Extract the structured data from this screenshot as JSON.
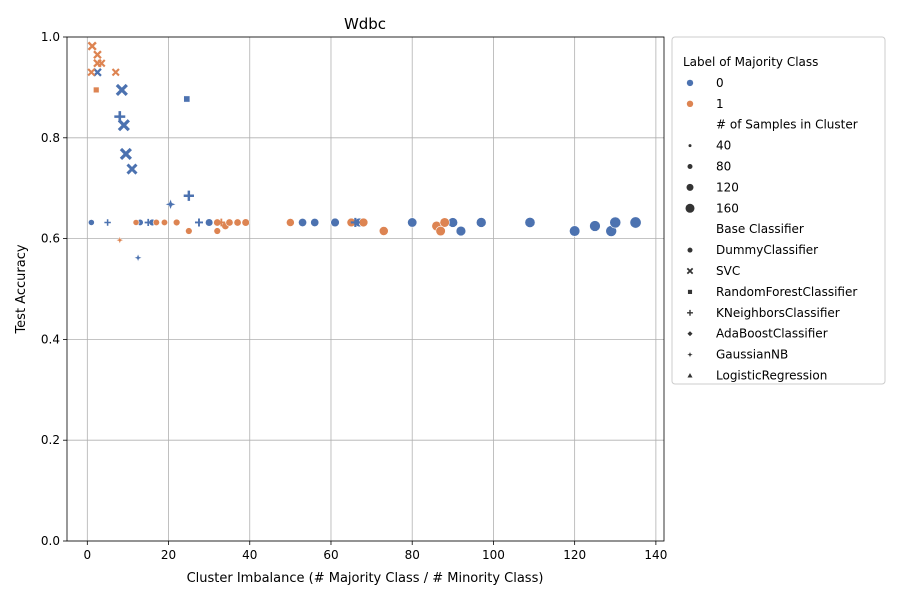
{
  "chart_data": {
    "type": "scatter",
    "title": "Wdbc",
    "xlabel": "Cluster Imbalance (# Majority Class / # Minority Class)",
    "ylabel": "Test Accuracy",
    "xlim": [
      -5,
      142
    ],
    "ylim": [
      0.0,
      1.0
    ],
    "xticks": [
      0,
      20,
      40,
      60,
      80,
      100,
      120,
      140
    ],
    "yticks": [
      0.0,
      0.2,
      0.4,
      0.6,
      0.8,
      1.0
    ],
    "xtick_labels": [
      "0",
      "20",
      "40",
      "60",
      "80",
      "100",
      "120",
      "140"
    ],
    "ytick_labels": [
      "0.0",
      "0.2",
      "0.4",
      "0.6",
      "0.8",
      "1.0"
    ],
    "grid": true,
    "legend_placement": "outside-right",
    "colors": {
      "0": "#4c72b0",
      "1": "#dd8452"
    },
    "legend": {
      "hue_title": "Label of Majority Class",
      "hue_entries": [
        "0",
        "1"
      ],
      "size_title": "# of Samples in Cluster",
      "size_entries": [
        "40",
        "80",
        "120",
        "160"
      ],
      "style_title": "Base Classifier",
      "style_entries": [
        "DummyClassifier",
        "SVC",
        "RandomForestClassifier",
        "KNeighborsClassifier",
        "AdaBoostClassifier",
        "GaussianNB",
        "LogisticRegression"
      ]
    },
    "points": [
      {
        "x": 1,
        "y": 0.632,
        "label": "0",
        "clf": "DummyClassifier",
        "n": 20
      },
      {
        "x": 13,
        "y": 0.632,
        "label": "0",
        "clf": "DummyClassifier",
        "n": 25
      },
      {
        "x": 16,
        "y": 0.632,
        "label": "0",
        "clf": "DummyClassifier",
        "n": 30
      },
      {
        "x": 30,
        "y": 0.632,
        "label": "0",
        "clf": "DummyClassifier",
        "n": 45
      },
      {
        "x": 53,
        "y": 0.632,
        "label": "0",
        "clf": "DummyClassifier",
        "n": 60
      },
      {
        "x": 56,
        "y": 0.632,
        "label": "0",
        "clf": "DummyClassifier",
        "n": 60
      },
      {
        "x": 61,
        "y": 0.632,
        "label": "0",
        "clf": "DummyClassifier",
        "n": 70
      },
      {
        "x": 67,
        "y": 0.632,
        "label": "0",
        "clf": "DummyClassifier",
        "n": 75
      },
      {
        "x": 80,
        "y": 0.632,
        "label": "0",
        "clf": "DummyClassifier",
        "n": 90
      },
      {
        "x": 90,
        "y": 0.632,
        "label": "0",
        "clf": "DummyClassifier",
        "n": 100
      },
      {
        "x": 92,
        "y": 0.615,
        "label": "0",
        "clf": "DummyClassifier",
        "n": 100
      },
      {
        "x": 97,
        "y": 0.632,
        "label": "0",
        "clf": "DummyClassifier",
        "n": 105
      },
      {
        "x": 109,
        "y": 0.632,
        "label": "0",
        "clf": "DummyClassifier",
        "n": 115
      },
      {
        "x": 120,
        "y": 0.615,
        "label": "0",
        "clf": "DummyClassifier",
        "n": 125
      },
      {
        "x": 125,
        "y": 0.625,
        "label": "0",
        "clf": "DummyClassifier",
        "n": 135
      },
      {
        "x": 129,
        "y": 0.615,
        "label": "0",
        "clf": "DummyClassifier",
        "n": 140
      },
      {
        "x": 130,
        "y": 0.632,
        "label": "0",
        "clf": "DummyClassifier",
        "n": 145
      },
      {
        "x": 135,
        "y": 0.632,
        "label": "0",
        "clf": "DummyClassifier",
        "n": 150
      },
      {
        "x": 12,
        "y": 0.632,
        "label": "1",
        "clf": "DummyClassifier",
        "n": 20
      },
      {
        "x": 17,
        "y": 0.632,
        "label": "1",
        "clf": "DummyClassifier",
        "n": 25
      },
      {
        "x": 19,
        "y": 0.632,
        "label": "1",
        "clf": "DummyClassifier",
        "n": 25
      },
      {
        "x": 22,
        "y": 0.632,
        "label": "1",
        "clf": "DummyClassifier",
        "n": 30
      },
      {
        "x": 25,
        "y": 0.615,
        "label": "1",
        "clf": "DummyClassifier",
        "n": 30
      },
      {
        "x": 32,
        "y": 0.632,
        "label": "1",
        "clf": "DummyClassifier",
        "n": 40
      },
      {
        "x": 32,
        "y": 0.615,
        "label": "1",
        "clf": "DummyClassifier",
        "n": 30
      },
      {
        "x": 34,
        "y": 0.625,
        "label": "1",
        "clf": "DummyClassifier",
        "n": 40
      },
      {
        "x": 35,
        "y": 0.632,
        "label": "1",
        "clf": "DummyClassifier",
        "n": 40
      },
      {
        "x": 37,
        "y": 0.632,
        "label": "1",
        "clf": "DummyClassifier",
        "n": 40
      },
      {
        "x": 39,
        "y": 0.632,
        "label": "1",
        "clf": "DummyClassifier",
        "n": 45
      },
      {
        "x": 50,
        "y": 0.632,
        "label": "1",
        "clf": "DummyClassifier",
        "n": 55
      },
      {
        "x": 65,
        "y": 0.632,
        "label": "1",
        "clf": "DummyClassifier",
        "n": 70
      },
      {
        "x": 68,
        "y": 0.632,
        "label": "1",
        "clf": "DummyClassifier",
        "n": 75
      },
      {
        "x": 73,
        "y": 0.615,
        "label": "1",
        "clf": "DummyClassifier",
        "n": 80
      },
      {
        "x": 86,
        "y": 0.625,
        "label": "1",
        "clf": "DummyClassifier",
        "n": 95
      },
      {
        "x": 87,
        "y": 0.615,
        "label": "1",
        "clf": "DummyClassifier",
        "n": 95
      },
      {
        "x": 88,
        "y": 0.632,
        "label": "1",
        "clf": "DummyClassifier",
        "n": 95
      },
      {
        "x": 2.5,
        "y": 0.93,
        "label": "0",
        "clf": "SVC",
        "n": 40
      },
      {
        "x": 8.5,
        "y": 0.895,
        "label": "0",
        "clf": "SVC",
        "n": 120
      },
      {
        "x": 9,
        "y": 0.825,
        "label": "0",
        "clf": "SVC",
        "n": 120
      },
      {
        "x": 9.5,
        "y": 0.768,
        "label": "0",
        "clf": "SVC",
        "n": 120
      },
      {
        "x": 11,
        "y": 0.738,
        "label": "0",
        "clf": "SVC",
        "n": 90
      },
      {
        "x": 1,
        "y": 0.93,
        "label": "1",
        "clf": "SVC",
        "n": 30
      },
      {
        "x": 1.2,
        "y": 0.982,
        "label": "1",
        "clf": "SVC",
        "n": 50
      },
      {
        "x": 2.5,
        "y": 0.965,
        "label": "1",
        "clf": "SVC",
        "n": 40
      },
      {
        "x": 2.5,
        "y": 0.948,
        "label": "1",
        "clf": "SVC",
        "n": 40
      },
      {
        "x": 3.5,
        "y": 0.948,
        "label": "1",
        "clf": "SVC",
        "n": 30
      },
      {
        "x": 7,
        "y": 0.93,
        "label": "1",
        "clf": "SVC",
        "n": 30
      },
      {
        "x": 24.5,
        "y": 0.877,
        "label": "0",
        "clf": "RandomForestClassifier",
        "n": 40
      },
      {
        "x": 2.2,
        "y": 0.895,
        "label": "1",
        "clf": "RandomForestClassifier",
        "n": 30
      },
      {
        "x": 8,
        "y": 0.842,
        "label": "0",
        "clf": "KNeighborsClassifier",
        "n": 120
      },
      {
        "x": 25,
        "y": 0.685,
        "label": "0",
        "clf": "KNeighborsClassifier",
        "n": 100
      },
      {
        "x": 5,
        "y": 0.632,
        "label": "0",
        "clf": "KNeighborsClassifier",
        "n": 20
      },
      {
        "x": 15,
        "y": 0.632,
        "label": "0",
        "clf": "KNeighborsClassifier",
        "n": 30
      },
      {
        "x": 27.5,
        "y": 0.632,
        "label": "0",
        "clf": "KNeighborsClassifier",
        "n": 45
      },
      {
        "x": 66,
        "y": 0.632,
        "label": "0",
        "clf": "KNeighborsClassifier",
        "n": 70
      },
      {
        "x": 33,
        "y": 0.632,
        "label": "1",
        "clf": "KNeighborsClassifier",
        "n": 40
      },
      {
        "x": 20.5,
        "y": 0.668,
        "label": "0",
        "clf": "GaussianNB",
        "n": 90
      },
      {
        "x": 12.5,
        "y": 0.562,
        "label": "0",
        "clf": "GaussianNB",
        "n": 30
      },
      {
        "x": 8,
        "y": 0.597,
        "label": "1",
        "clf": "GaussianNB",
        "n": 25
      }
    ]
  }
}
